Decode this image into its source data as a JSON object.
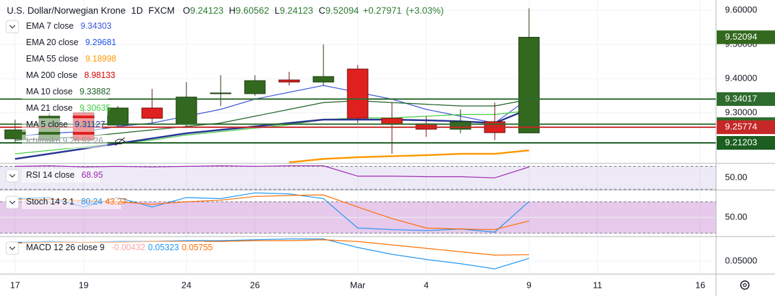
{
  "header": {
    "symbol": "U.S. Dollar/Norwegian Krone",
    "interval": "1D",
    "source": "FXCM",
    "o_label": "O",
    "h_label": "H",
    "l_label": "L",
    "c_label": "C",
    "change": "+0.27971",
    "change_pct": "(+3.03%)"
  },
  "chart_data": [
    {
      "type": "candlestick",
      "categories": [
        "17",
        null,
        "19",
        null,
        null,
        "24",
        null,
        "26",
        null,
        null,
        "Mar",
        null,
        "4",
        null,
        null,
        "9"
      ],
      "future_xticks": [
        "11",
        "16"
      ],
      "open": [
        9.224,
        9.22,
        9.3,
        9.264,
        9.314,
        9.266,
        9.356,
        9.356,
        9.396,
        9.39,
        9.428,
        9.284,
        9.268,
        9.252,
        9.274,
        9.24123
      ],
      "high": [
        9.28,
        9.3,
        9.31,
        9.32,
        9.37,
        9.39,
        9.41,
        9.41,
        9.42,
        9.5,
        9.44,
        9.33,
        9.29,
        9.31,
        9.33,
        9.60562
      ],
      "low": [
        9.21,
        9.21,
        9.21,
        9.26,
        9.27,
        9.26,
        9.32,
        9.35,
        9.38,
        9.38,
        9.27,
        9.18,
        9.23,
        9.24,
        9.22,
        9.24123
      ],
      "close": [
        9.25,
        9.29,
        9.22,
        9.314,
        9.284,
        9.346,
        9.358,
        9.394,
        9.39,
        9.406,
        9.284,
        9.268,
        9.252,
        9.274,
        9.242,
        9.52094
      ],
      "up_color": "#33691e",
      "down_color": "#e0201f",
      "ylim": [
        9.154,
        9.63
      ],
      "yticks": [
        {
          "value": 9.3,
          "label": "9.30000"
        },
        {
          "value": 9.4,
          "label": "9.40000"
        },
        {
          "value": 9.5,
          "label": "9.50000"
        },
        {
          "value": 9.6,
          "label": "9.60000"
        }
      ],
      "grid": true,
      "series": [
        {
          "name": "EMA 7 close",
          "color": "#3d55d8",
          "last": 9.34303,
          "values": [
            9.23,
            9.24,
            9.245,
            9.26,
            9.27,
            9.29,
            9.31,
            9.34,
            9.36,
            9.38,
            9.36,
            9.34,
            9.31,
            9.29,
            9.27,
            9.34303
          ]
        },
        {
          "name": "EMA 20 close",
          "color": "#1e53e5",
          "last": 9.29681
        },
        {
          "name": "EMA 55 close",
          "color": "#ff9800",
          "last": 9.18998,
          "values": [
            null,
            null,
            null,
            null,
            null,
            null,
            null,
            null,
            9.155,
            9.165,
            9.17,
            9.173,
            9.176,
            9.18,
            9.18,
            9.18998
          ]
        },
        {
          "name": "MA 200 close",
          "color": "#d50000",
          "last": 8.98133
        },
        {
          "name": "MA 10 close",
          "color": "#1b5e20",
          "last": 9.33882,
          "values": [
            9.22,
            9.225,
            9.23,
            9.24,
            9.25,
            9.26,
            9.27,
            9.29,
            9.31,
            9.33,
            9.335,
            9.33,
            9.325,
            9.32,
            9.32,
            9.33882
          ]
        },
        {
          "name": "MA 21 close",
          "color": "#3fcf3f",
          "last": 9.30635,
          "values": [
            9.18,
            9.19,
            9.2,
            9.21,
            9.22,
            9.235,
            9.245,
            9.255,
            9.265,
            9.28,
            9.285,
            9.285,
            9.29,
            9.295,
            9.295,
            9.30635
          ]
        },
        {
          "name": "MA 5 close",
          "color": "#283593",
          "last": 9.31127,
          "values": [
            9.165,
            9.18,
            9.195,
            9.21,
            9.225,
            9.24,
            9.25,
            9.26,
            9.27,
            9.28,
            9.28,
            9.28,
            9.278,
            9.275,
            9.27,
            9.31127
          ]
        }
      ],
      "ichimoku_label": "Ichimoku 9 26 52 26",
      "levels": [
        {
          "value": 9.34017,
          "color": "#2e6b2e"
        },
        {
          "value": 9.26682,
          "color": "#2e6b2e"
        },
        {
          "value": 9.25774,
          "color": "#c62828"
        },
        {
          "value": 9.21203,
          "color": "#1b5e20"
        }
      ]
    },
    {
      "type": "line",
      "ylim": [
        30,
        74
      ],
      "yticks": [
        {
          "value": 50,
          "label": "50.00"
        }
      ],
      "band": [
        30,
        70
      ],
      "series": [
        {
          "name": "RSI 14 close",
          "color": "#9c27b0",
          "last": 68.95,
          "values": [
            70,
            71,
            69,
            70,
            69,
            70,
            71,
            70,
            71,
            71,
            53,
            53,
            52,
            52,
            50,
            68.95
          ]
        }
      ]
    },
    {
      "type": "line",
      "ylim": [
        15,
        101
      ],
      "yticks": [
        {
          "value": 50,
          "label": "50.00"
        }
      ],
      "band": [
        20,
        80
      ],
      "name": "Stoch 14 3 1",
      "series": [
        {
          "color": "#2196f3",
          "last": 80.24,
          "values": [
            86,
            88,
            70,
            88,
            70,
            88,
            86,
            97,
            95,
            86,
            30,
            27,
            25,
            28,
            22,
            80.24
          ]
        },
        {
          "color": "#ff6d00",
          "last": 43.27,
          "values": [
            84,
            85,
            82,
            80,
            75,
            80,
            83,
            90,
            92,
            93,
            70,
            48,
            30,
            28,
            27,
            43.27
          ]
        }
      ]
    },
    {
      "type": "line",
      "ylim": [
        0.0356,
        0.078
      ],
      "yticks": [
        {
          "value": 0.05,
          "label": "0.05000"
        }
      ],
      "name": "MACD 12 26 close 9",
      "histogram_last": -0.00432,
      "histogram_color": "#f8a5a5",
      "series": [
        {
          "color": "#2196f3",
          "last": 0.05323,
          "values": [
            0.072,
            0.073,
            0.072,
            0.073,
            0.073,
            0.074,
            0.074,
            0.075,
            0.076,
            0.076,
            0.066,
            0.058,
            0.052,
            0.047,
            0.041,
            0.05323
          ]
        },
        {
          "color": "#ff6d00",
          "last": 0.05755,
          "values": [
            0.071,
            0.072,
            0.072,
            0.072,
            0.073,
            0.073,
            0.073,
            0.074,
            0.074,
            0.075,
            0.073,
            0.069,
            0.065,
            0.061,
            0.057,
            0.05755
          ]
        }
      ]
    }
  ]
}
